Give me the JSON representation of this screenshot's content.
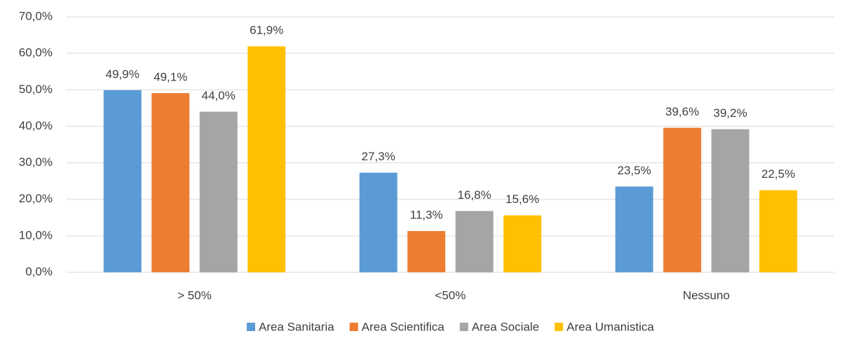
{
  "chart_data": {
    "type": "bar",
    "categories": [
      "> 50%",
      "<50%",
      "Nessuno"
    ],
    "series": [
      {
        "name": "Area Sanitaria",
        "color": "#5b9bd5",
        "values": [
          49.9,
          27.3,
          23.5
        ],
        "value_labels": [
          "49,9%",
          "27,3%",
          "23,5%"
        ]
      },
      {
        "name": "Area Scientifica",
        "color": "#ed7d31",
        "values": [
          49.1,
          11.3,
          39.6
        ],
        "value_labels": [
          "49,1%",
          "11,3%",
          "39,6%"
        ]
      },
      {
        "name": "Area Sociale",
        "color": "#a5a5a5",
        "values": [
          44.0,
          16.8,
          39.2
        ],
        "value_labels": [
          "44,0%",
          "16,8%",
          "39,2%"
        ]
      },
      {
        "name": "Area Umanistica",
        "color": "#ffc000",
        "values": [
          61.9,
          15.6,
          22.5
        ],
        "value_labels": [
          "61,9%",
          "15,6%",
          "22,5%"
        ]
      }
    ],
    "ylim": [
      0,
      70
    ],
    "yticks": [
      {
        "value": 0,
        "label": "0,0%"
      },
      {
        "value": 10,
        "label": "10,0%"
      },
      {
        "value": 20,
        "label": "20,0%"
      },
      {
        "value": 30,
        "label": "30,0%"
      },
      {
        "value": 40,
        "label": "40,0%"
      },
      {
        "value": 50,
        "label": "50,0%"
      },
      {
        "value": 60,
        "label": "60,0%"
      },
      {
        "value": 70,
        "label": "70,0%"
      }
    ],
    "grid": true,
    "legend": "bottom"
  }
}
